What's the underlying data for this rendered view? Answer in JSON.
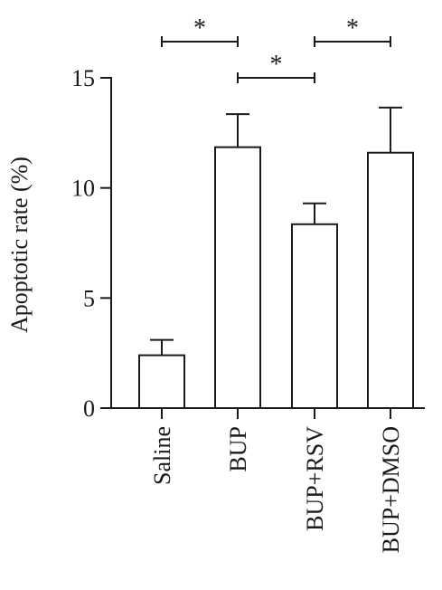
{
  "chart_data": {
    "type": "bar",
    "ylabel": "Apoptotic rate (%)",
    "categories": [
      "Saline",
      "BUP",
      "BUP+RSV",
      "BUP+DMSO"
    ],
    "values": [
      2.4,
      11.85,
      8.35,
      11.6
    ],
    "errors": [
      0.7,
      1.5,
      0.95,
      2.05
    ],
    "ylim": [
      0,
      15
    ],
    "yticks": [
      0,
      5,
      10,
      15
    ],
    "ytick_labels": [
      "0",
      "5",
      "10",
      "15"
    ],
    "significance": [
      {
        "from": "Saline",
        "to": "BUP",
        "label": "*"
      },
      {
        "from": "BUP",
        "to": "BUP+RSV",
        "label": "*"
      },
      {
        "from": "BUP+RSV",
        "to": "BUP+DMSO",
        "label": "*"
      }
    ]
  }
}
